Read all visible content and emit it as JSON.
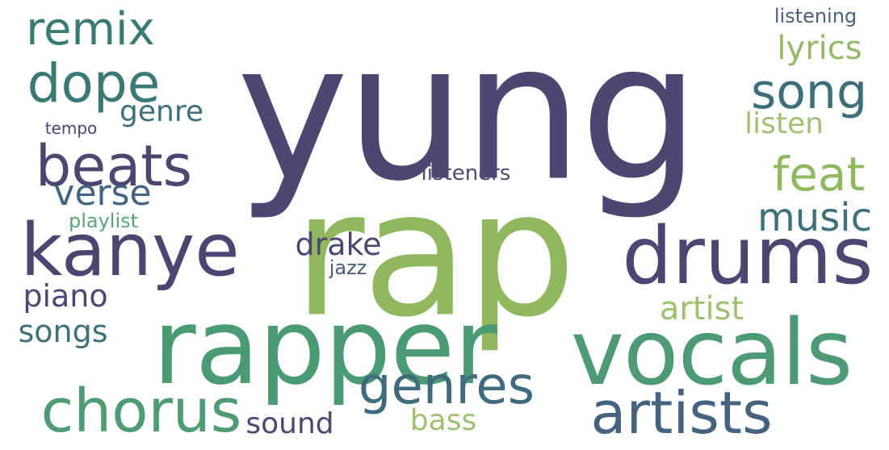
{
  "words": [
    {
      "key": "yung",
      "text": "yung",
      "color": "#4f4573"
    },
    {
      "key": "rap",
      "text": "rap",
      "color": "#8fb85f"
    },
    {
      "key": "rapper",
      "text": "rapper",
      "color": "#4a9a74"
    },
    {
      "key": "vocals",
      "text": "vocals",
      "color": "#4f9a76"
    },
    {
      "key": "drums",
      "text": "drums",
      "color": "#4e4672"
    },
    {
      "key": "kanye",
      "text": "kanye",
      "color": "#4c4571"
    },
    {
      "key": "artists",
      "text": "artists",
      "color": "#45627e"
    },
    {
      "key": "chorus",
      "text": "chorus",
      "color": "#4e9b75"
    },
    {
      "key": "genres",
      "text": "genres",
      "color": "#3f6b7c"
    },
    {
      "key": "beats",
      "text": "beats",
      "color": "#4c4670"
    },
    {
      "key": "dope",
      "text": "dope",
      "color": "#3a7a74"
    },
    {
      "key": "remix",
      "text": "remix",
      "color": "#397a73"
    },
    {
      "key": "song",
      "text": "song",
      "color": "#3e6f78"
    },
    {
      "key": "feat",
      "text": "feat",
      "color": "#8fb860"
    },
    {
      "key": "verse",
      "text": "verse",
      "color": "#45627e"
    },
    {
      "key": "music",
      "text": "music",
      "color": "#3f6f79"
    },
    {
      "key": "lyrics",
      "text": "lyrics",
      "color": "#94b865"
    },
    {
      "key": "genre",
      "text": "genre",
      "color": "#3f6f79"
    },
    {
      "key": "listen",
      "text": "listen",
      "color": "#a1c074"
    },
    {
      "key": "drake",
      "text": "drake",
      "color": "#4d4570"
    },
    {
      "key": "artist",
      "text": "artist",
      "color": "#9fc06f"
    },
    {
      "key": "piano",
      "text": "piano",
      "color": "#4e4672"
    },
    {
      "key": "songs",
      "text": "songs",
      "color": "#3e7178"
    },
    {
      "key": "sound",
      "text": "sound",
      "color": "#4e4672"
    },
    {
      "key": "bass",
      "text": "bass",
      "color": "#9fc06f"
    },
    {
      "key": "listeners",
      "text": "listeners",
      "color": "#4d4a72"
    },
    {
      "key": "listening",
      "text": "listening",
      "color": "#4c5f7b"
    },
    {
      "key": "playlist",
      "text": "playlist",
      "color": "#5aa477"
    },
    {
      "key": "jazz",
      "text": "jazz",
      "color": "#4a5a7b"
    },
    {
      "key": "tempo",
      "text": "tempo",
      "color": "#4c4671"
    }
  ]
}
